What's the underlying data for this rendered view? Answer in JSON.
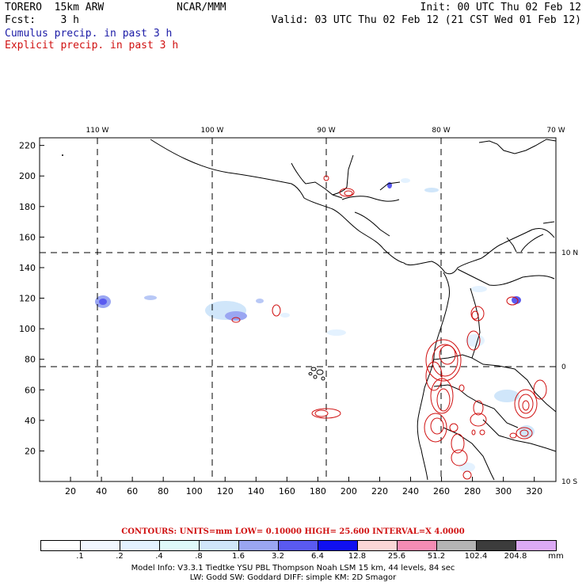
{
  "header": {
    "model": "TORERO  15km ARW",
    "org": "NCAR/MMM",
    "init": "Init: 00 UTC Thu 02 Feb 12",
    "fcst": "Fcst:    3 h",
    "valid": "Valid: 03 UTC Thu 02 Feb 12 (21 CST Wed 01 Feb 12)",
    "cumulus": "Cumulus precip. in past 3 h",
    "explicit": "Explicit precip. in past 3 h"
  },
  "colors": {
    "cumulus_text": "#1a1aa6",
    "explicit_text": "#d01010",
    "coast": "#000000",
    "explicit_contour": "#d01010"
  },
  "map": {
    "top_lon_labels": [
      "110 W",
      "100 W",
      "90 W",
      "80 W",
      "70 W"
    ],
    "right_lat_labels": [
      "10 N",
      "0",
      "10 S"
    ],
    "x_ticks": [
      "20",
      "40",
      "60",
      "80",
      "100",
      "120",
      "140",
      "160",
      "180",
      "200",
      "220",
      "240",
      "260",
      "280",
      "300",
      "320"
    ],
    "y_ticks": [
      "20",
      "40",
      "60",
      "80",
      "100",
      "120",
      "140",
      "160",
      "180",
      "200",
      "220"
    ],
    "x_range": [
      0,
      334
    ],
    "y_range": [
      0,
      225
    ]
  },
  "legend": {
    "contours_text": "CONTOURS:  UNITS=mm  LOW= 0.10000     HIGH=  25.600     INTERVAL=X  4.0000",
    "labels": [
      ".1",
      ".2",
      ".4",
      ".8",
      "1.6",
      "3.2",
      "6.4",
      "12.8",
      "25.6",
      "51.2",
      "102.4",
      "204.8"
    ],
    "units": "mm",
    "colors": [
      "#ffffff",
      "#f2f7ff",
      "#e4f2ff",
      "#dff9f9",
      "#d0e6fa",
      "#9aa6f2",
      "#5a5af0",
      "#1010f0",
      "#fbd6d6",
      "#f58cb4",
      "#b4b4b4",
      "#3c3c3c",
      "#dcaaf5"
    ]
  },
  "footer": {
    "line1": "Model Info: V3.3.1     Tiedtke YSU PBL  Thompson     Noah LSM  15 km,   44 levels,    84 sec",
    "line2": "LW: Godd SW: Goddard DIFF: simple KM: 2D Smagor"
  }
}
